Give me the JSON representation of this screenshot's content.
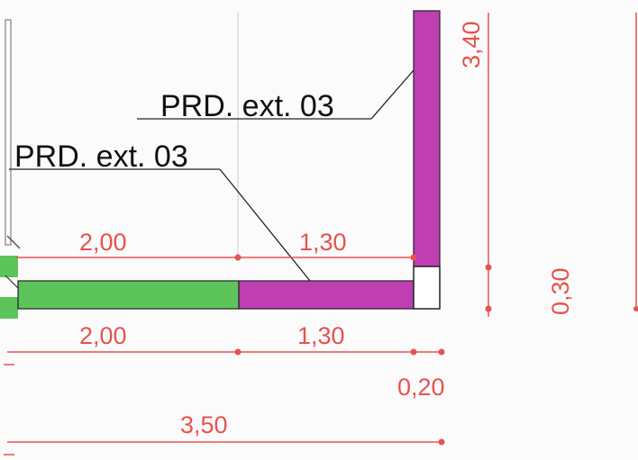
{
  "labels": {
    "prd_upper": "PRD. ext. 03",
    "prd_lower": "PRD. ext. 03"
  },
  "dimensions": {
    "upper_left": "2,00",
    "upper_right": "1,30",
    "lower_left": "2,00",
    "lower_right": "1,30",
    "small_gap": "0,20",
    "total": "3,50",
    "vertical_height": "3,40",
    "vertical_small": "0,30"
  },
  "colors": {
    "dimension": "#e8524f",
    "magenta_wall": "#bf3fb3",
    "green_wall": "#5cc45a",
    "ink": "#111111"
  }
}
